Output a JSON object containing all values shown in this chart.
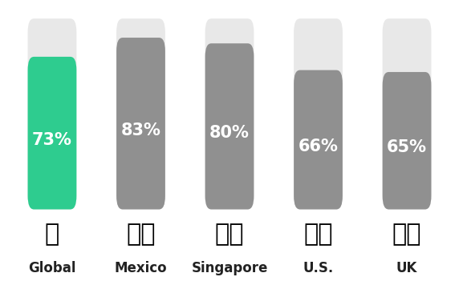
{
  "categories": [
    "Global",
    "Mexico",
    "Singapore",
    "U.S.",
    "UK"
  ],
  "values": [
    73,
    83,
    80,
    66,
    65
  ],
  "bar_color_filled": [
    "#2ecc8f",
    "#909090",
    "#909090",
    "#909090",
    "#909090"
  ],
  "bar_color_empty": [
    "#e8e8e8",
    "#e8e8e8",
    "#e8e8e8",
    "#e8e8e8",
    "#e8e8e8"
  ],
  "label_color": [
    "#ffffff",
    "#ffffff",
    "#ffffff",
    "#ffffff",
    "#ffffff"
  ],
  "bar_width": 0.55,
  "bar_max": 100,
  "background_color": "#ffffff",
  "label_fontsize": 15,
  "category_fontsize": 12,
  "flag_fontsize": 22
}
